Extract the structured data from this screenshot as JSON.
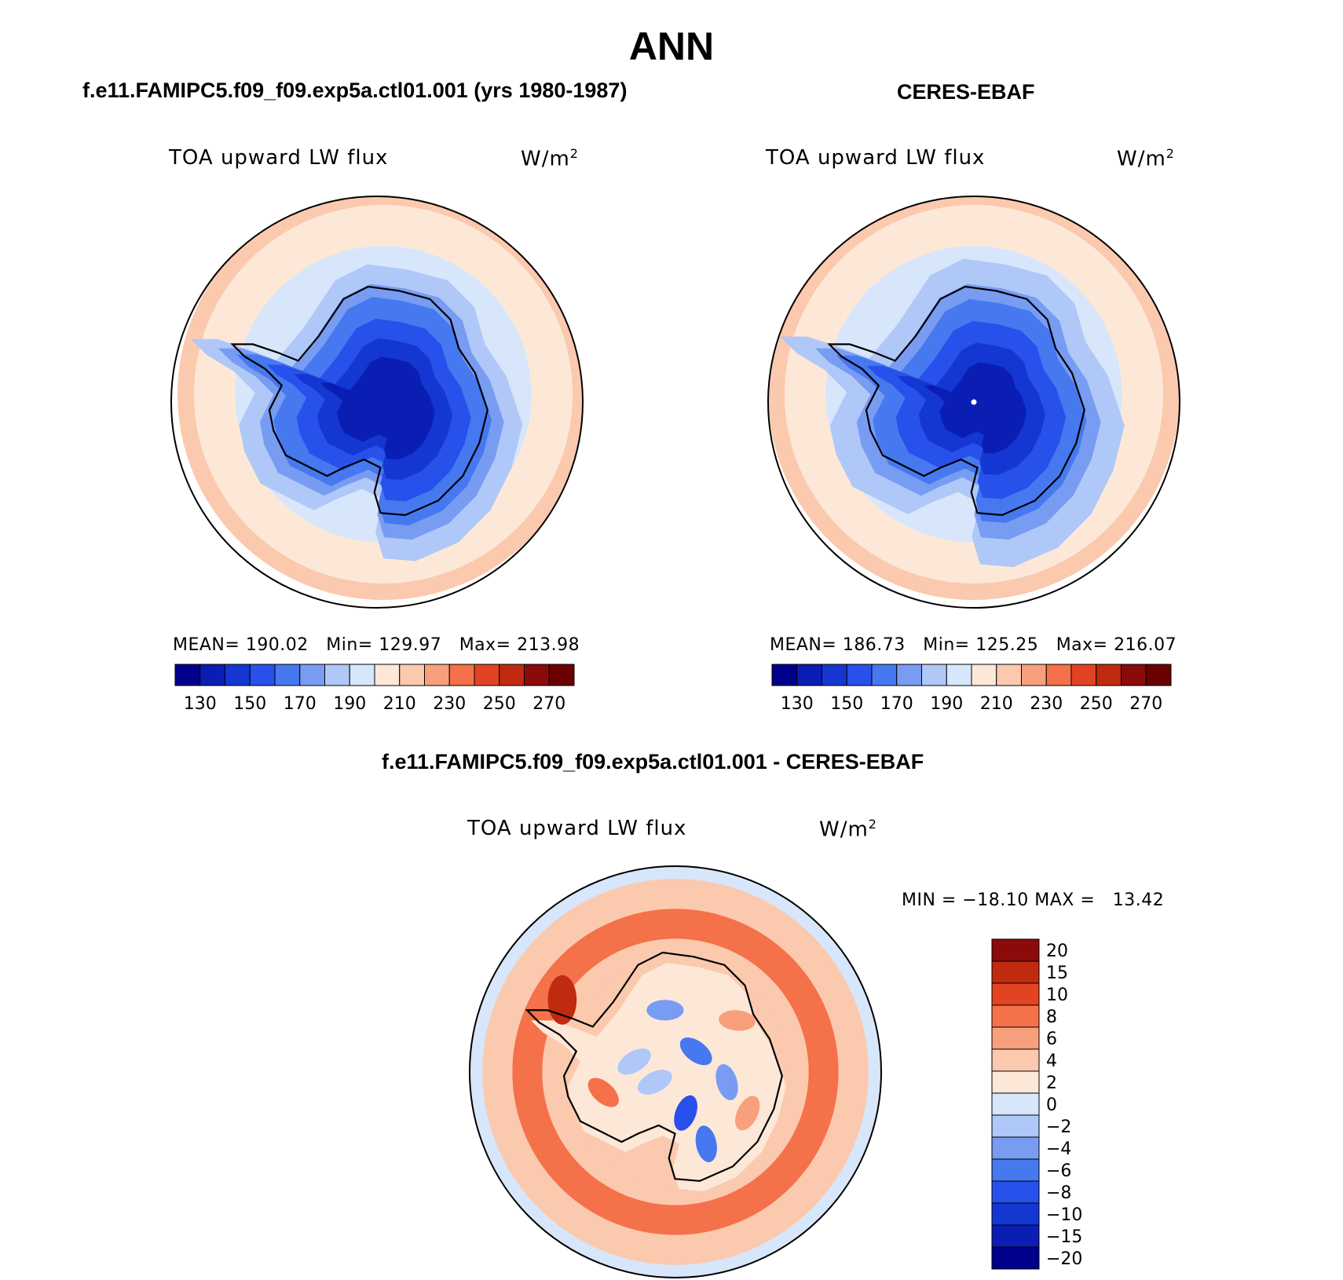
{
  "title": "ANN",
  "panels": [
    {
      "title": "f.e11.FAMIPC5.f09_f09.exp5a.ctl01.001 (yrs 1980-1987)",
      "variable": "TOA upward LW flux",
      "units": "W/m",
      "units_sup": "2",
      "stats": "MEAN= 190.02   Min= 129.97   Max= 213.98"
    },
    {
      "title": "CERES-EBAF",
      "variable": "TOA upward LW flux",
      "units": "W/m",
      "units_sup": "2",
      "stats": "MEAN= 186.73   Min= 125.25   Max= 216.07"
    },
    {
      "title": "f.e11.FAMIPC5.f09_f09.exp5a.ctl01.001 - CERES-EBAF",
      "variable": "TOA upward LW flux",
      "units": "W/m",
      "units_sup": "2",
      "stats": "MIN = −18.10 MAX =   13.42"
    }
  ],
  "chart_data": [
    {
      "type": "heatmap",
      "projection": "south-polar-stereographic",
      "title": "f.e11.FAMIPC5.f09_f09.exp5a.ctl01.001 (yrs 1980-1987)",
      "variable": "TOA upward LW flux",
      "units": "W/m2",
      "mean": 190.02,
      "min": 129.97,
      "max": 213.98,
      "colorbar": {
        "orientation": "horizontal",
        "levels": [
          130,
          140,
          150,
          160,
          170,
          180,
          190,
          200,
          210,
          220,
          230,
          240,
          250,
          260,
          270
        ],
        "tick_labels": [
          "130",
          "150",
          "170",
          "190",
          "210",
          "230",
          "250",
          "270"
        ],
        "colors": [
          "#00008b",
          "#0a1eb4",
          "#1437d2",
          "#2850eb",
          "#4678f0",
          "#789cf2",
          "#afc8f7",
          "#d7e6fa",
          "#fde8d8",
          "#fbc9ae",
          "#f8a07e",
          "#f4714a",
          "#e24322",
          "#c02a0f",
          "#8b0a0a",
          "#6b0000"
        ]
      }
    },
    {
      "type": "heatmap",
      "projection": "south-polar-stereographic",
      "title": "CERES-EBAF",
      "variable": "TOA upward LW flux",
      "units": "W/m2",
      "mean": 186.73,
      "min": 125.25,
      "max": 216.07,
      "colorbar": {
        "orientation": "horizontal",
        "levels": [
          130,
          140,
          150,
          160,
          170,
          180,
          190,
          200,
          210,
          220,
          230,
          240,
          250,
          260,
          270
        ],
        "tick_labels": [
          "130",
          "150",
          "170",
          "190",
          "210",
          "230",
          "250",
          "270"
        ],
        "colors": [
          "#00008b",
          "#0a1eb4",
          "#1437d2",
          "#2850eb",
          "#4678f0",
          "#789cf2",
          "#afc8f7",
          "#d7e6fa",
          "#fde8d8",
          "#fbc9ae",
          "#f8a07e",
          "#f4714a",
          "#e24322",
          "#c02a0f",
          "#8b0a0a",
          "#6b0000"
        ]
      }
    },
    {
      "type": "heatmap",
      "projection": "south-polar-stereographic",
      "title": "f.e11.FAMIPC5.f09_f09.exp5a.ctl01.001 - CERES-EBAF",
      "variable": "TOA upward LW flux",
      "units": "W/m2",
      "min": -18.1,
      "max": 13.42,
      "colorbar": {
        "orientation": "vertical",
        "tick_labels": [
          "20",
          "15",
          "10",
          "8",
          "6",
          "4",
          "2",
          "0",
          "−2",
          "−4",
          "−6",
          "−8",
          "−10",
          "−15",
          "−20"
        ],
        "colors": [
          "#8b0a0a",
          "#c02a0f",
          "#e24322",
          "#f4714a",
          "#f8a07e",
          "#fbc9ae",
          "#fde8d8",
          "#d7e6fa",
          "#afc8f7",
          "#789cf2",
          "#4678f0",
          "#2850eb",
          "#1437d2",
          "#0a1eb4",
          "#00008b"
        ]
      }
    }
  ]
}
